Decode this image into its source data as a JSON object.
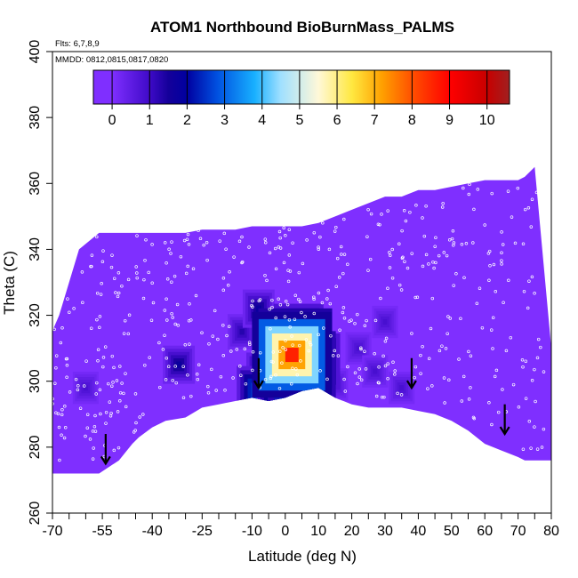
{
  "chart_data": {
    "type": "heatmap",
    "title": "ATOM1 Northbound BioBurnMass_PALMS",
    "flights_note": "Flts: 6,7,8,9",
    "dates_note": "MMDD: 0812,0815,0817,0820",
    "xlabel": "Latitude (deg N)",
    "ylabel": "Theta (C)",
    "xlim": [
      -70,
      80
    ],
    "ylim": [
      260,
      400
    ],
    "x_ticks": [
      -70,
      -55,
      -40,
      -25,
      -10,
      0,
      10,
      20,
      30,
      40,
      50,
      60,
      70,
      80
    ],
    "x_minor_ticks": [
      -65,
      -60,
      -50,
      -45,
      -35,
      -30,
      -20,
      -15,
      -5,
      5,
      15,
      25,
      35,
      45,
      55,
      65,
      75
    ],
    "y_ticks": [
      260,
      280,
      300,
      320,
      340,
      360,
      380,
      400
    ],
    "colorbar": {
      "ticks": [
        0,
        1,
        2,
        3,
        4,
        5,
        6,
        7,
        8,
        9,
        10
      ],
      "range": [
        -0.5,
        10.6
      ],
      "colors": [
        "#7f2fff",
        "#3f0ac8",
        "#14009a",
        "#0000a0",
        "#0050e0",
        "#18b0ff",
        "#a0e0ff",
        "#fff8d8",
        "#ffe840",
        "#ffa000",
        "#ff5000",
        "#ff0000",
        "#c80000",
        "#a02020"
      ],
      "stops": [
        0,
        1,
        1.5,
        2,
        2.8,
        3.8,
        4.5,
        5.5,
        6.4,
        7.2,
        8,
        9,
        10,
        10.6
      ]
    },
    "profile_boundary": {
      "lat": [
        -71,
        -68,
        -62,
        -56,
        -50,
        -46,
        -44,
        -40,
        -36,
        -30,
        -25,
        -20,
        -15,
        -10,
        -5,
        0,
        5,
        10,
        15,
        20,
        25,
        30,
        35,
        40,
        45,
        50,
        55,
        60,
        65,
        70,
        72,
        75,
        80
      ],
      "top": [
        313,
        320,
        340,
        345,
        345,
        345,
        345,
        345,
        345,
        345,
        346,
        346,
        346,
        347,
        347,
        347,
        347,
        348,
        350,
        352,
        354,
        356,
        356,
        358,
        358,
        359,
        360,
        361,
        361,
        361,
        362,
        365,
        310
      ],
      "bottom": [
        272,
        272,
        272,
        272,
        276,
        281,
        283,
        286,
        288,
        289,
        292,
        293,
        294,
        295,
        294,
        295,
        297,
        298,
        295,
        293,
        292,
        292,
        292,
        291,
        290,
        288,
        285,
        281,
        279,
        277,
        276,
        276,
        276
      ]
    },
    "hotspots": [
      {
        "lat": 2,
        "theta": 308,
        "value": 10
      },
      {
        "lat": 3,
        "theta": 310,
        "value": 9
      },
      {
        "lat": 5,
        "theta": 304,
        "value": 8
      },
      {
        "lat": 6,
        "theta": 301,
        "value": 6
      },
      {
        "lat": 9,
        "theta": 306,
        "value": 5
      },
      {
        "lat": 4,
        "theta": 315,
        "value": 5
      },
      {
        "lat": -8,
        "theta": 297,
        "value": 4
      },
      {
        "lat": -6,
        "theta": 302,
        "value": 3
      },
      {
        "lat": -2,
        "theta": 296,
        "value": 4
      },
      {
        "lat": 8,
        "theta": 313,
        "value": 3
      },
      {
        "lat": -32,
        "theta": 305,
        "value": 2
      },
      {
        "lat": -8,
        "theta": 322,
        "value": 2
      },
      {
        "lat": -13,
        "theta": 315,
        "value": 1.5
      },
      {
        "lat": 22,
        "theta": 310,
        "value": 1
      },
      {
        "lat": 27,
        "theta": 303,
        "value": 1
      },
      {
        "lat": 30,
        "theta": 318,
        "value": 1
      },
      {
        "lat": -60,
        "theta": 298,
        "value": 1
      },
      {
        "lat": 15,
        "theta": 299,
        "value": 1
      },
      {
        "lat": 35,
        "theta": 298,
        "value": 1
      }
    ],
    "arrows": [
      {
        "lat": -54,
        "theta": 275
      },
      {
        "lat": -8,
        "theta": 298
      },
      {
        "lat": 38,
        "theta": 298
      },
      {
        "lat": 66,
        "theta": 284
      }
    ]
  }
}
